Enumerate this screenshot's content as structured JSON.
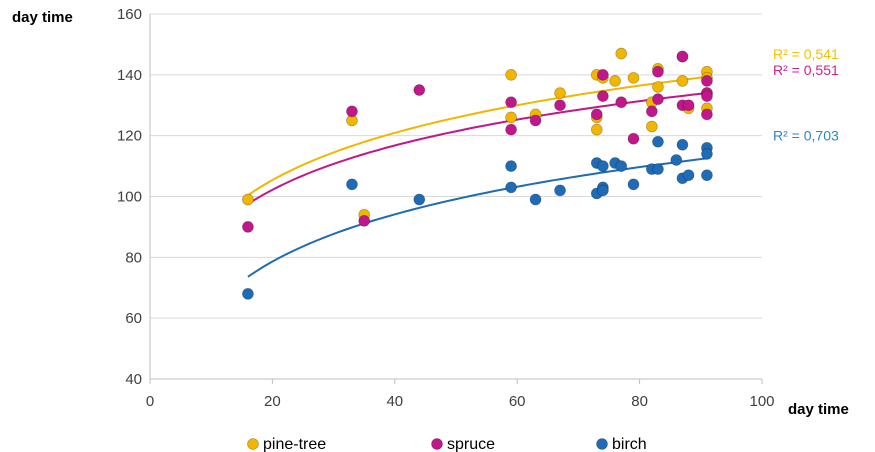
{
  "chart_data": {
    "type": "scatter",
    "title": "",
    "xlabel": "day time",
    "ylabel": "day time",
    "xlim": [
      0,
      100
    ],
    "ylim": [
      40,
      160
    ],
    "x_ticks": [
      0,
      20,
      40,
      60,
      80,
      100
    ],
    "y_ticks": [
      40,
      60,
      80,
      100,
      120,
      140,
      160
    ],
    "grid": "horizontal",
    "legend_position": "bottom",
    "series": [
      {
        "name": "pine-tree",
        "color": "#F2B600",
        "trendline": {
          "type": "logarithmic",
          "a": 38.3,
          "b": 22.4,
          "x_from": 16,
          "x_to": 91,
          "r2_label": "R² = 0,541",
          "r2_color": "#F2C200"
        },
        "points": [
          [
            16,
            99
          ],
          [
            33,
            125
          ],
          [
            35,
            94
          ],
          [
            59,
            140
          ],
          [
            59,
            126
          ],
          [
            63,
            127
          ],
          [
            67,
            134
          ],
          [
            73,
            140
          ],
          [
            73,
            122
          ],
          [
            73,
            126
          ],
          [
            74,
            139
          ],
          [
            76,
            138
          ],
          [
            77,
            147
          ],
          [
            79,
            139
          ],
          [
            82,
            123
          ],
          [
            82,
            131
          ],
          [
            83,
            142
          ],
          [
            83,
            136
          ],
          [
            87,
            146
          ],
          [
            87,
            138
          ],
          [
            88,
            129
          ],
          [
            91,
            141
          ],
          [
            91,
            139
          ],
          [
            91,
            134
          ],
          [
            91,
            129
          ]
        ]
      },
      {
        "name": "spruce",
        "color": "#C0178A",
        "trendline": {
          "type": "logarithmic",
          "a": 39.3,
          "b": 21.0,
          "x_from": 16,
          "x_to": 91,
          "r2_label": "R² = 0,551",
          "r2_color": "#D0208F"
        },
        "points": [
          [
            16,
            90
          ],
          [
            33,
            128
          ],
          [
            35,
            92
          ],
          [
            44,
            135
          ],
          [
            59,
            131
          ],
          [
            59,
            122
          ],
          [
            63,
            125
          ],
          [
            67,
            130
          ],
          [
            73,
            127
          ],
          [
            74,
            140
          ],
          [
            74,
            133
          ],
          [
            77,
            131
          ],
          [
            79,
            119
          ],
          [
            82,
            128
          ],
          [
            83,
            141
          ],
          [
            83,
            132
          ],
          [
            87,
            146
          ],
          [
            87,
            130
          ],
          [
            88,
            130
          ],
          [
            91,
            138
          ],
          [
            91,
            134
          ],
          [
            91,
            133
          ],
          [
            91,
            127
          ]
        ]
      },
      {
        "name": "birch",
        "color": "#1F6BB5",
        "trendline": {
          "type": "logarithmic",
          "a": 11.5,
          "b": 22.4,
          "x_from": 16,
          "x_to": 91,
          "r2_label": "R² = 0,703",
          "r2_color": "#2E86C1"
        },
        "points": [
          [
            16,
            68
          ],
          [
            33,
            104
          ],
          [
            44,
            99
          ],
          [
            59,
            110
          ],
          [
            59,
            103
          ],
          [
            63,
            99
          ],
          [
            67,
            102
          ],
          [
            73,
            111
          ],
          [
            73,
            101
          ],
          [
            74,
            110
          ],
          [
            74,
            103
          ],
          [
            74,
            102
          ],
          [
            76,
            111
          ],
          [
            77,
            110
          ],
          [
            79,
            104
          ],
          [
            82,
            109
          ],
          [
            83,
            118
          ],
          [
            83,
            109
          ],
          [
            86,
            112
          ],
          [
            87,
            106
          ],
          [
            87,
            117
          ],
          [
            88,
            107
          ],
          [
            91,
            116
          ],
          [
            91,
            114
          ],
          [
            91,
            107
          ]
        ]
      }
    ]
  }
}
